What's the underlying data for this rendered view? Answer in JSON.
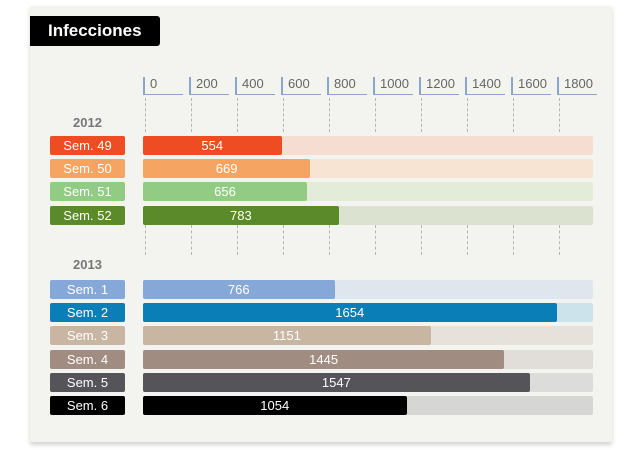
{
  "title": "Infecciones",
  "chart_data": {
    "type": "bar",
    "orientation": "horizontal",
    "title": "Infecciones",
    "xlim": [
      0,
      1800
    ],
    "ticks": [
      "0",
      "200",
      "400",
      "600",
      "800",
      "1000",
      "1200",
      "1400",
      "1600",
      "1800"
    ],
    "groups": [
      {
        "year": "2012",
        "rows": [
          {
            "label": "Sem. 49",
            "value": 554,
            "color": "#ee4c23",
            "bg": "#f6ddd2"
          },
          {
            "label": "Sem. 50",
            "value": 669,
            "color": "#f6a462",
            "bg": "#f8e4d3"
          },
          {
            "label": "Sem. 51",
            "value": 656,
            "color": "#92cc84",
            "bg": "#e2ecd9"
          },
          {
            "label": "Sem. 52",
            "value": 783,
            "color": "#5a8a2a",
            "bg": "#dbe3d0"
          }
        ]
      },
      {
        "year": "2013",
        "rows": [
          {
            "label": "Sem. 1",
            "value": 766,
            "color": "#86a8d8",
            "bg": "#e0e6ee"
          },
          {
            "label": "Sem. 2",
            "value": 1654,
            "color": "#0a7eb6",
            "bg": "#cde3ec"
          },
          {
            "label": "Sem. 3",
            "value": 1151,
            "color": "#c8b6a2",
            "bg": "#e6e1db"
          },
          {
            "label": "Sem. 4",
            "value": 1445,
            "color": "#a08c80",
            "bg": "#e1ddd9"
          },
          {
            "label": "Sem. 5",
            "value": 1547,
            "color": "#555459",
            "bg": "#dcdcda"
          },
          {
            "label": "Sem. 6",
            "value": 1054,
            "color": "#000000",
            "bg": "#d6d6d4"
          }
        ]
      }
    ]
  }
}
